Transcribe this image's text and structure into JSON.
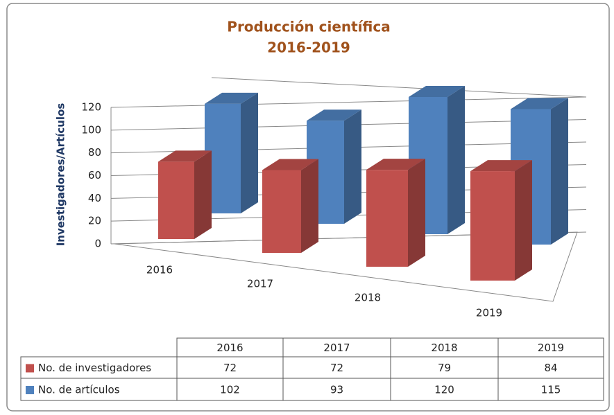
{
  "chart_data": {
    "type": "bar3d",
    "title": "Producción científica",
    "subtitle": "2016-2019",
    "y_label": "Investigadores/Artículos",
    "categories": [
      "2016",
      "2017",
      "2018",
      "2019"
    ],
    "series": [
      {
        "name": "No. de investigadores",
        "color": "#c0504d",
        "values": [
          72,
          72,
          79,
          84
        ]
      },
      {
        "name": "No. de artículos",
        "color": "#4f81bd",
        "values": [
          102,
          93,
          120,
          115
        ]
      }
    ],
    "ylim": [
      0,
      120
    ],
    "yticks": [
      0,
      20,
      40,
      60,
      80,
      100,
      120
    ],
    "grid": true
  }
}
